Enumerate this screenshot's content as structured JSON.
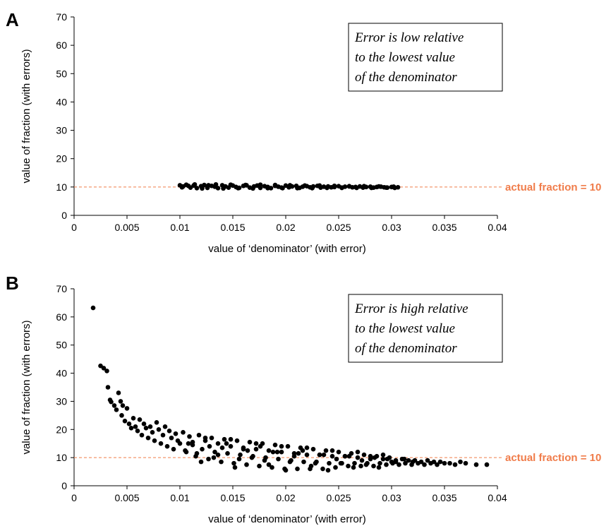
{
  "chart_data": [
    {
      "panel": "A",
      "type": "scatter",
      "xlabel": "value of ‘denominator’ (with error)",
      "ylabel": "value of fraction (with errors)",
      "xlim": [
        0,
        0.04
      ],
      "ylim": [
        0,
        70
      ],
      "x_ticks": [
        "0",
        "0.005",
        "0.01",
        "0.015",
        "0.02",
        "0.025",
        "0.03",
        "0.035",
        "0.04"
      ],
      "y_ticks": [
        "0",
        "10",
        "20",
        "30",
        "40",
        "50",
        "60",
        "70"
      ],
      "annotation": [
        "Error is low relative",
        "to the lowest value",
        "of the denominator"
      ],
      "reference_line": {
        "y": 10,
        "label": "actual fraction = 10",
        "color": "#f07c4a"
      },
      "marker_color": "#000000",
      "series": [
        {
          "x": [
            0.01,
            0.0103,
            0.0106,
            0.011,
            0.0113,
            0.0116,
            0.012,
            0.0123,
            0.0126,
            0.013,
            0.0133,
            0.0136,
            0.014,
            0.0143,
            0.0146,
            0.015,
            0.0153,
            0.0156,
            0.016,
            0.0163,
            0.0166,
            0.017,
            0.0173,
            0.0176,
            0.018,
            0.0183,
            0.0186,
            0.019,
            0.0193,
            0.0196,
            0.02,
            0.0203,
            0.0206,
            0.021,
            0.0213,
            0.0216,
            0.022,
            0.0223,
            0.0226,
            0.023,
            0.0233,
            0.0236,
            0.024,
            0.0243,
            0.0246,
            0.025,
            0.0253,
            0.0256,
            0.026,
            0.0263,
            0.0266,
            0.027,
            0.0273,
            0.0276,
            0.028,
            0.0283,
            0.0286,
            0.029,
            0.0293,
            0.0296,
            0.03,
            0.0303,
            0.0306,
            0.0102,
            0.0108,
            0.0114,
            0.0121,
            0.0127,
            0.0134,
            0.0141,
            0.0148,
            0.0155,
            0.0162,
            0.0169,
            0.0176,
            0.0183,
            0.019,
            0.0197,
            0.0204,
            0.0211,
            0.0218,
            0.0225,
            0.0232,
            0.0239,
            0.0246,
            0.0253,
            0.026,
            0.0267,
            0.0274,
            0.0281,
            0.0288,
            0.0295,
            0.0302
          ],
          "y": [
            10.6,
            10.2,
            10.8,
            9.8,
            10.5,
            9.6,
            10.3,
            10.7,
            9.7,
            10.4,
            10.1,
            9.6,
            10.6,
            10.2,
            9.8,
            10.5,
            10.0,
            9.7,
            10.4,
            10.6,
            9.8,
            10.2,
            10.5,
            9.7,
            10.3,
            10.0,
            9.6,
            10.4,
            10.1,
            9.8,
            10.5,
            9.9,
            10.2,
            10.4,
            9.7,
            10.1,
            10.3,
            9.9,
            10.2,
            10.4,
            9.8,
            10.1,
            10.2,
            9.9,
            10.0,
            10.3,
            9.8,
            10.1,
            10.2,
            9.9,
            10.0,
            10.2,
            9.8,
            10.0,
            10.1,
            9.8,
            10.0,
            10.1,
            9.9,
            9.8,
            10.0,
            9.7,
            9.9,
            9.9,
            10.4,
            10.9,
            9.5,
            10.6,
            10.9,
            9.5,
            10.8,
            9.6,
            10.7,
            9.5,
            10.8,
            9.6,
            10.7,
            9.6,
            10.6,
            9.6,
            10.5,
            9.6,
            10.5,
            9.7,
            10.4,
            9.7,
            10.3,
            9.7,
            10.3,
            9.7,
            10.2,
            9.8,
            10.1
          ]
        }
      ]
    },
    {
      "panel": "B",
      "type": "scatter",
      "xlabel": "value of ‘denominator’ (with error)",
      "ylabel": "value of fraction (with errors)",
      "xlim": [
        0,
        0.04
      ],
      "ylim": [
        0,
        70
      ],
      "x_ticks": [
        "0",
        "0.005",
        "0.01",
        "0.015",
        "0.02",
        "0.025",
        "0.03",
        "0.035",
        "0.04"
      ],
      "y_ticks": [
        "0",
        "10",
        "20",
        "30",
        "40",
        "50",
        "60",
        "70"
      ],
      "annotation": [
        "Error is high relative",
        "to the lowest value",
        "of the denominator"
      ],
      "reference_line": {
        "y": 10,
        "label": "actual fraction = 10",
        "color": "#f07c4a"
      },
      "marker_color": "#000000",
      "series": [
        {
          "x": [
            0.0018,
            0.0025,
            0.0028,
            0.0031,
            0.0032,
            0.0034,
            0.0035,
            0.0038,
            0.004,
            0.0042,
            0.0044,
            0.0045,
            0.0046,
            0.0048,
            0.005,
            0.0052,
            0.0054,
            0.0056,
            0.0058,
            0.006,
            0.0062,
            0.0064,
            0.0066,
            0.0068,
            0.007,
            0.0072,
            0.0074,
            0.0076,
            0.0078,
            0.008,
            0.0082,
            0.0084,
            0.0086,
            0.0088,
            0.009,
            0.0092,
            0.0094,
            0.0096,
            0.0098,
            0.01,
            0.0103,
            0.0106,
            0.0109,
            0.0112,
            0.0115,
            0.0118,
            0.0121,
            0.0124,
            0.0127,
            0.013,
            0.0133,
            0.0136,
            0.0139,
            0.0142,
            0.0145,
            0.0148,
            0.0151,
            0.0154,
            0.0157,
            0.016,
            0.0163,
            0.0166,
            0.0169,
            0.0172,
            0.0175,
            0.0178,
            0.0181,
            0.0184,
            0.0187,
            0.019,
            0.0193,
            0.0196,
            0.0199,
            0.0202,
            0.0205,
            0.0208,
            0.0211,
            0.0214,
            0.0217,
            0.022,
            0.0223,
            0.0226,
            0.0229,
            0.0232,
            0.0235,
            0.0238,
            0.0241,
            0.0244,
            0.0247,
            0.025,
            0.0253,
            0.0256,
            0.0259,
            0.0262,
            0.0265,
            0.0268,
            0.0271,
            0.0274,
            0.0277,
            0.028,
            0.0283,
            0.0286,
            0.0289,
            0.0292,
            0.0295,
            0.0298,
            0.0301,
            0.0304,
            0.0307,
            0.031,
            0.0313,
            0.0316,
            0.0319,
            0.0322,
            0.0325,
            0.0328,
            0.0331,
            0.0334,
            0.0337,
            0.034,
            0.0343,
            0.0346,
            0.035,
            0.0355,
            0.036,
            0.0365,
            0.037,
            0.038,
            0.039,
            0.0105,
            0.0112,
            0.012,
            0.0128,
            0.0136,
            0.0144,
            0.0152,
            0.016,
            0.0168,
            0.0176,
            0.0184,
            0.0192,
            0.02,
            0.0208,
            0.0216,
            0.0224,
            0.0232,
            0.024,
            0.0248,
            0.0256,
            0.0264,
            0.0272,
            0.028,
            0.0288,
            0.0296,
            0.0304,
            0.0312,
            0.032,
            0.0108,
            0.0116,
            0.0124,
            0.0132,
            0.014,
            0.0148,
            0.0156,
            0.0164,
            0.0172,
            0.018,
            0.0188,
            0.0196,
            0.0204,
            0.0212,
            0.022,
            0.0228,
            0.0236,
            0.0244,
            0.0252,
            0.026,
            0.0268,
            0.0276,
            0.0284,
            0.0292,
            0.03
          ],
          "y": [
            63.2,
            42.6,
            41.8,
            40.8,
            35.0,
            30.5,
            29.8,
            28.5,
            27.0,
            33.0,
            30.0,
            25.0,
            28.5,
            23.0,
            27.5,
            22.0,
            20.5,
            24.0,
            21.0,
            19.5,
            23.5,
            18.0,
            22.0,
            20.5,
            17.0,
            21.0,
            19.0,
            16.0,
            22.5,
            20.0,
            15.0,
            18.0,
            21.0,
            14.0,
            19.5,
            17.0,
            13.0,
            18.5,
            16.0,
            15.0,
            19.0,
            12.0,
            17.5,
            14.5,
            10.5,
            18.0,
            13.0,
            16.0,
            9.5,
            17.0,
            12.0,
            15.0,
            8.5,
            16.5,
            11.5,
            14.0,
            8.0,
            16.0,
            11.0,
            13.5,
            7.5,
            15.5,
            10.5,
            13.0,
            7.0,
            15.0,
            10.0,
            12.5,
            6.5,
            14.5,
            9.5,
            12.0,
            6.0,
            14.0,
            9.0,
            11.5,
            6.0,
            13.5,
            8.5,
            11.0,
            6.0,
            13.0,
            8.5,
            11.0,
            6.0,
            12.5,
            8.0,
            10.5,
            6.5,
            12.0,
            8.0,
            10.5,
            7.0,
            11.5,
            8.0,
            10.0,
            7.0,
            11.0,
            8.0,
            9.5,
            7.0,
            10.5,
            8.0,
            9.5,
            7.5,
            10.0,
            8.0,
            9.0,
            7.5,
            9.5,
            8.0,
            9.0,
            7.5,
            9.0,
            8.0,
            8.5,
            7.5,
            9.0,
            8.0,
            8.5,
            7.5,
            8.5,
            8.0,
            8.0,
            7.5,
            8.5,
            8.0,
            7.5,
            7.5,
            12.5,
            15.5,
            8.5,
            14.0,
            11.0,
            15.0,
            6.5,
            13.0,
            10.0,
            14.0,
            7.5,
            12.0,
            5.5,
            10.5,
            12.5,
            7.0,
            11.0,
            5.5,
            9.5,
            10.5,
            6.5,
            9.0,
            10.5,
            6.5,
            9.5,
            8.5,
            9.5,
            8.5,
            15.0,
            11.5,
            17.0,
            10.0,
            13.5,
            16.5,
            9.5,
            12.5,
            15.0,
            9.0,
            12.0,
            14.0,
            8.5,
            11.5,
            13.5,
            8.0,
            11.0,
            12.5,
            8.0,
            10.5,
            12.0,
            7.5,
            10.0,
            11.0,
            8.5
          ]
        }
      ]
    }
  ],
  "panels": {
    "A": {
      "letter": "A"
    },
    "B": {
      "letter": "B"
    }
  }
}
